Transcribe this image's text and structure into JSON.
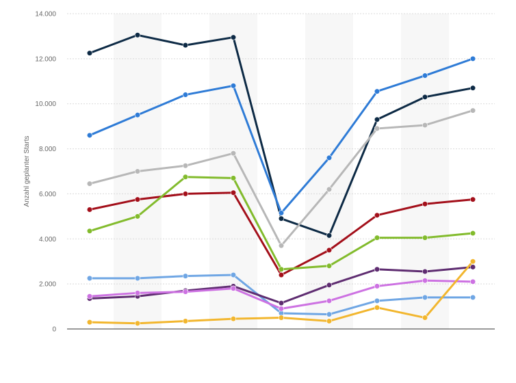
{
  "chart_data": {
    "type": "line",
    "ylabel": "Anzahl geplanter Starts",
    "ylim": [
      0,
      14000
    ],
    "y_ticks": [
      0,
      2000,
      4000,
      6000,
      8000,
      10000,
      12000,
      14000
    ],
    "y_tick_labels": [
      "0",
      "2.000",
      "4.000",
      "6.000",
      "8.000",
      "10.000",
      "12.000",
      "14.000"
    ],
    "categories_count": 9,
    "grid": "horizontal",
    "background_bands": "alternating",
    "series": [
      {
        "color": "#0d2a45",
        "values": [
          12250,
          13050,
          12600,
          12950,
          4900,
          4150,
          9300,
          10300,
          10700
        ]
      },
      {
        "color": "#2e7bd6",
        "values": [
          8600,
          9500,
          10400,
          10800,
          5150,
          7600,
          10550,
          11250,
          12000
        ]
      },
      {
        "color": "#b7b7b7",
        "values": [
          6450,
          7000,
          7250,
          7800,
          3700,
          6200,
          8900,
          9050,
          9700
        ]
      },
      {
        "color": "#a30f1a",
        "values": [
          5300,
          5750,
          6000,
          6050,
          2400,
          3500,
          5050,
          5550,
          5750
        ]
      },
      {
        "color": "#82bb2c",
        "values": [
          4350,
          5000,
          6750,
          6700,
          2650,
          2800,
          4050,
          4050,
          4250
        ]
      },
      {
        "color": "#6fa6e4",
        "values": [
          2250,
          2250,
          2350,
          2400,
          700,
          650,
          1250,
          1400,
          1400
        ]
      },
      {
        "color": "#5f2d71",
        "values": [
          1350,
          1450,
          1700,
          1900,
          1150,
          1950,
          2650,
          2550,
          2750
        ]
      },
      {
        "color": "#cd72e2",
        "values": [
          1450,
          1600,
          1650,
          1800,
          900,
          1250,
          1900,
          2150,
          2100
        ]
      },
      {
        "color": "#f2b62e",
        "values": [
          300,
          250,
          350,
          450,
          500,
          350,
          950,
          500,
          3000
        ]
      }
    ]
  }
}
